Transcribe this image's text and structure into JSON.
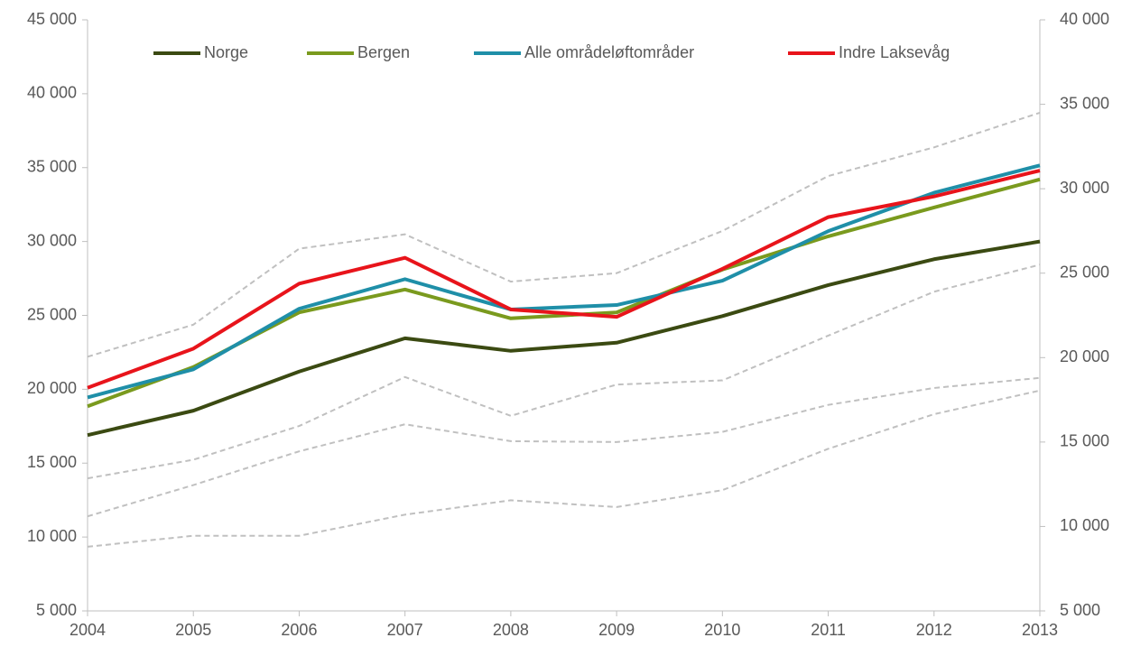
{
  "chart_data": {
    "type": "line",
    "categories": [
      "2004",
      "2005",
      "2006",
      "2007",
      "2008",
      "2009",
      "2010",
      "2011",
      "2012",
      "2013"
    ],
    "series": [
      {
        "name": "Norge",
        "color": "#3b4a12",
        "values": [
          16900,
          18550,
          21200,
          23450,
          22600,
          23150,
          24950,
          27050,
          28800,
          30000
        ]
      },
      {
        "name": "Bergen",
        "color": "#7a9a1e",
        "values": [
          18850,
          21500,
          25200,
          26750,
          24800,
          25200,
          28100,
          30350,
          32300,
          34200
        ]
      },
      {
        "name": "Alle områdeløftområder",
        "color": "#1f8fa8",
        "values": [
          19450,
          21350,
          25450,
          27450,
          25400,
          25700,
          27350,
          30700,
          33300,
          35150
        ]
      },
      {
        "name": "Indre Laksevåg",
        "color": "#e8141b",
        "values": [
          20100,
          22750,
          27150,
          28900,
          25400,
          24900,
          28150,
          31650,
          33050,
          34800
        ]
      },
      {
        "color": "#c0c0c0",
        "dashed": true,
        "axis": "y2",
        "values": [
          20050,
          21950,
          26450,
          27300,
          24500,
          25000,
          27500,
          30750,
          32450,
          34500
        ]
      },
      {
        "color": "#c0c0c0",
        "dashed": true,
        "axis": "y2",
        "values": [
          12850,
          13950,
          15950,
          18850,
          16550,
          18400,
          18650,
          21300,
          23900,
          25500
        ]
      },
      {
        "color": "#c0c0c0",
        "dashed": true,
        "axis": "y2",
        "values": [
          10600,
          12450,
          14450,
          16050,
          15050,
          15000,
          15600,
          17200,
          18200,
          18800
        ]
      },
      {
        "color": "#c0c0c0",
        "dashed": true,
        "axis": "y2",
        "values": [
          8800,
          9450,
          9450,
          10700,
          11550,
          11150,
          12150,
          14600,
          16650,
          18050
        ]
      }
    ],
    "ylim": [
      5000,
      45000
    ],
    "yticks": [
      {
        "value": 5000,
        "label": "5 000"
      },
      {
        "value": 10000,
        "label": "10 000"
      },
      {
        "value": 15000,
        "label": "15 000"
      },
      {
        "value": 20000,
        "label": "20 000"
      },
      {
        "value": 25000,
        "label": "25 000"
      },
      {
        "value": 30000,
        "label": "30 000"
      },
      {
        "value": 35000,
        "label": "35 000"
      },
      {
        "value": 40000,
        "label": "40 000"
      },
      {
        "value": 45000,
        "label": "45 000"
      }
    ],
    "y2lim": [
      5000,
      40000
    ],
    "y2ticks": [
      {
        "value": 5000,
        "label": "5 000"
      },
      {
        "value": 10000,
        "label": "10 000"
      },
      {
        "value": 15000,
        "label": "15 000"
      },
      {
        "value": 20000,
        "label": "20 000"
      },
      {
        "value": 25000,
        "label": "25 000"
      },
      {
        "value": 30000,
        "label": "30 000"
      },
      {
        "value": 35000,
        "label": "35 000"
      },
      {
        "value": 40000,
        "label": "40 000"
      }
    ],
    "grid": false,
    "legend": "top"
  }
}
